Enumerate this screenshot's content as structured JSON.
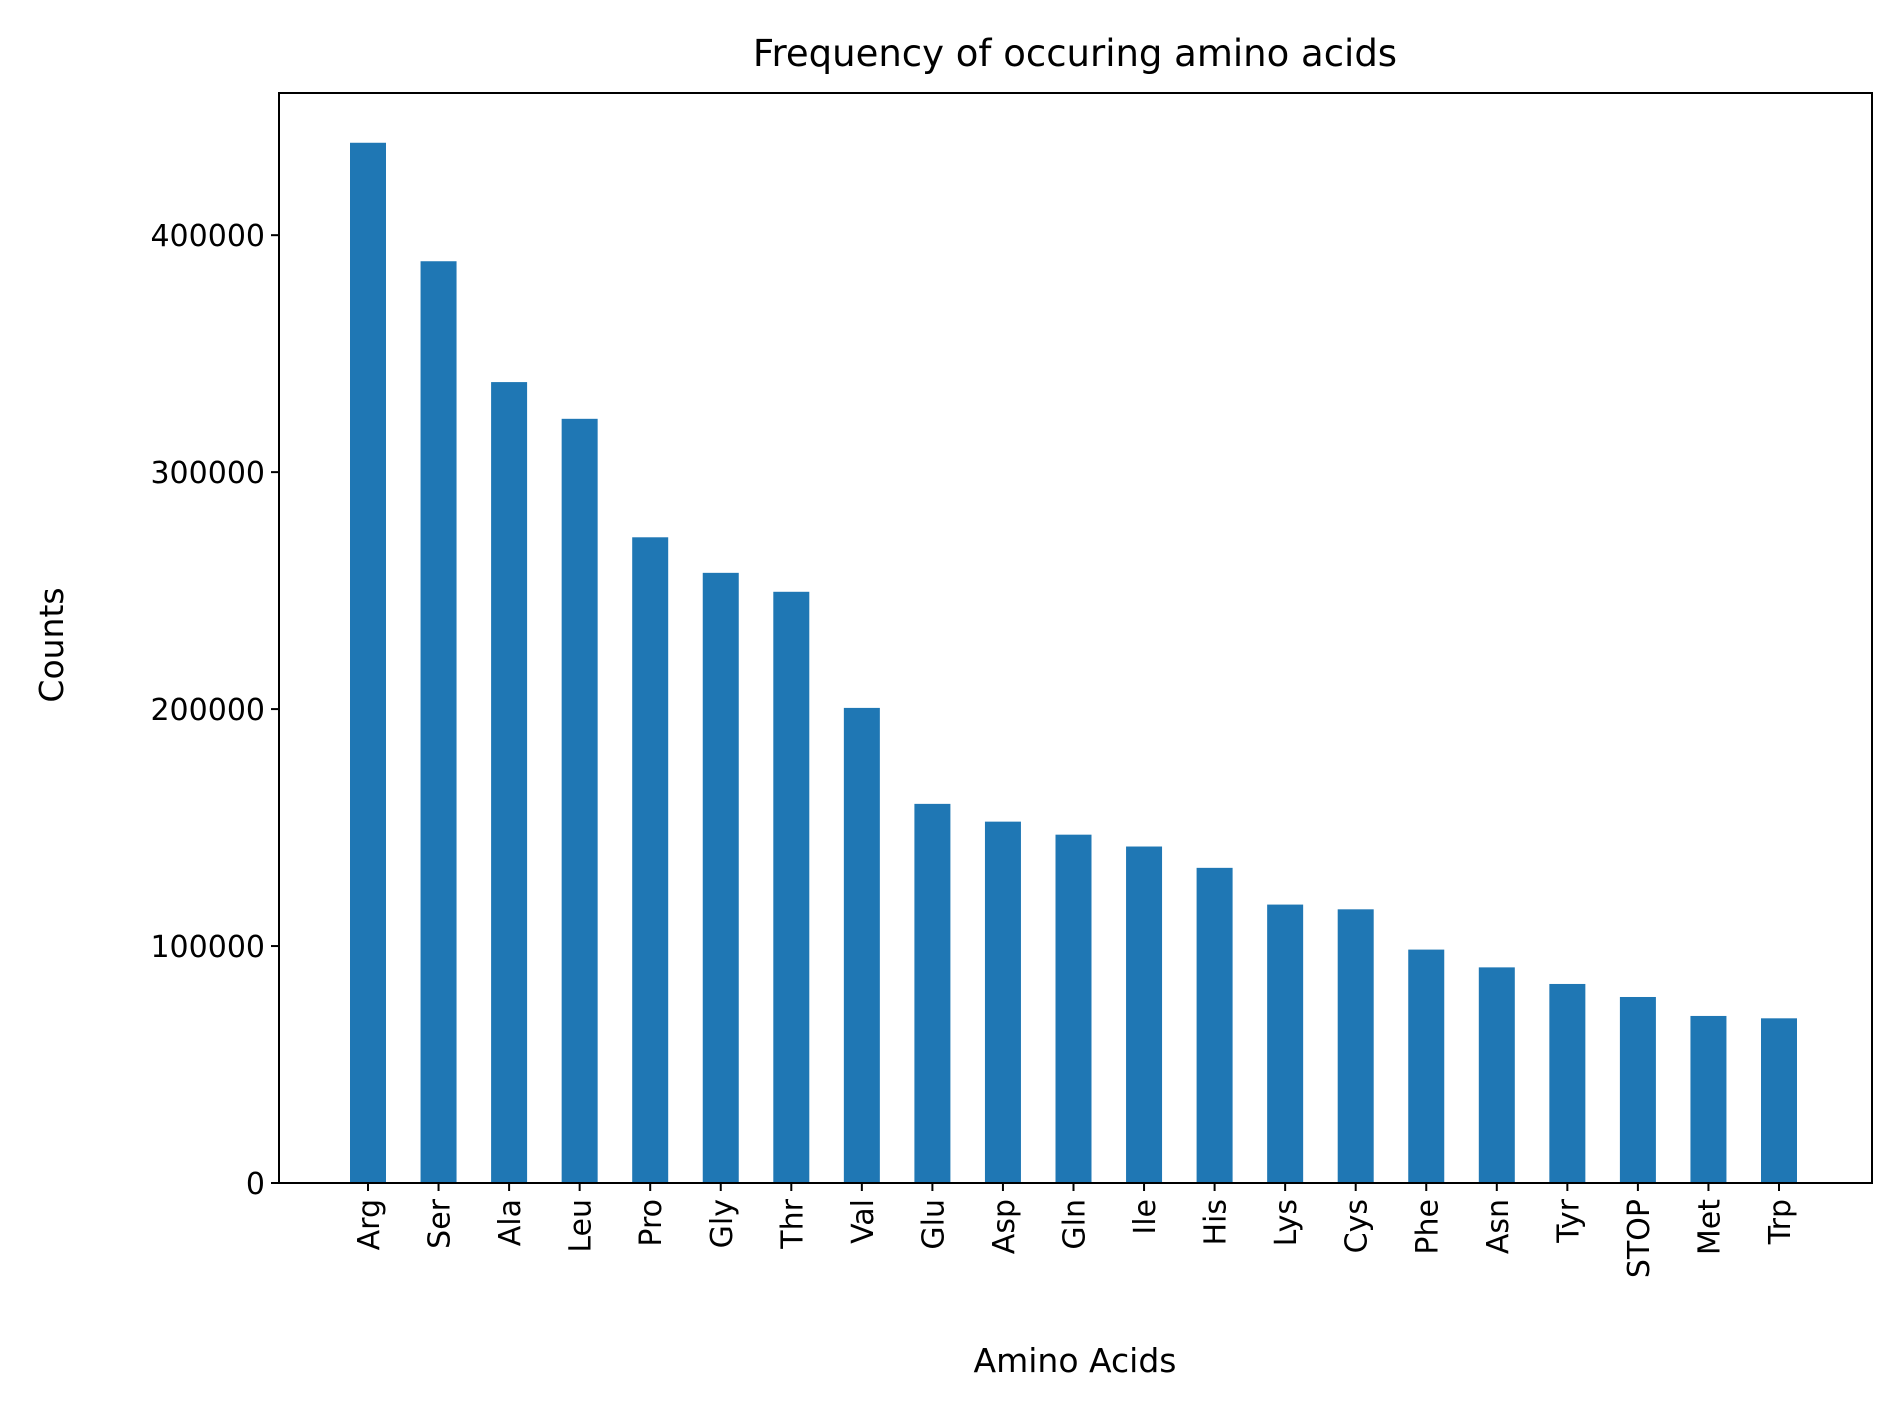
{
  "chart_data": {
    "type": "bar",
    "title": "Frequency of occuring amino acids",
    "xlabel": "Amino Acids",
    "ylabel": "Counts",
    "categories": [
      "Arg",
      "Ser",
      "Ala",
      "Leu",
      "Pro",
      "Gly",
      "Thr",
      "Val",
      "Glu",
      "Asp",
      "Gln",
      "Ile",
      "His",
      "Lys",
      "Cys",
      "Phe",
      "Asn",
      "Tyr",
      "STOP",
      "Met",
      "Trp"
    ],
    "values": [
      439000,
      389000,
      338000,
      322500,
      272500,
      257500,
      249500,
      200500,
      160000,
      152500,
      147000,
      142000,
      133000,
      117500,
      115500,
      98500,
      91000,
      84000,
      78500,
      70500,
      69500
    ],
    "ylim": [
      0,
      460000
    ],
    "yticks": [
      0,
      100000,
      200000,
      300000,
      400000
    ],
    "ytick_labels": [
      "0",
      "100000",
      "200000",
      "300000",
      "400000"
    ],
    "bar_color": "#1f77b4",
    "grid": false,
    "legend": null
  }
}
